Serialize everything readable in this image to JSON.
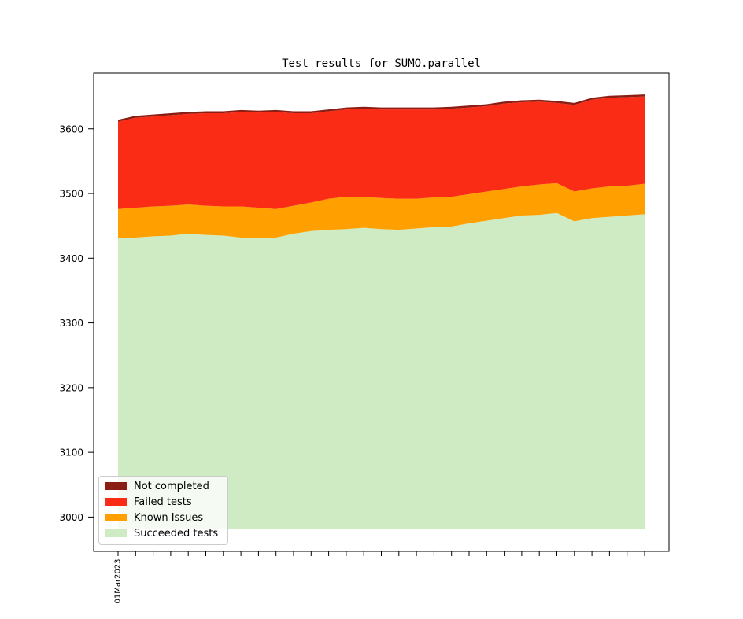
{
  "chart_data": {
    "type": "area",
    "stacked": true,
    "title": "Test results for SUMO.parallel",
    "x_first_tick_label": "01Mar2023",
    "x_points": 31,
    "yticks": [
      3000,
      3100,
      3200,
      3300,
      3400,
      3500,
      3600
    ],
    "ylim": [
      2947,
      3686
    ],
    "area_baseline": 2981,
    "grid": false,
    "legend_position": "lower left",
    "series": [
      {
        "name": "Not completed",
        "color": "#8B1E14",
        "values": [
          3,
          3,
          3,
          3,
          3,
          3,
          3,
          3,
          3,
          3,
          3,
          3,
          3,
          3,
          3,
          3,
          3,
          3,
          3,
          3,
          3,
          3,
          3,
          3,
          3,
          3,
          3,
          3,
          3,
          3,
          3
        ]
      },
      {
        "name": "Failed tests",
        "color": "#FB2C16",
        "values": [
          135,
          139,
          139,
          140,
          140,
          143,
          144,
          146,
          147,
          150,
          143,
          138,
          135,
          135,
          136,
          137,
          138,
          138,
          136,
          136,
          134,
          132,
          132,
          130,
          128,
          124,
          134,
          137,
          137,
          137,
          135
        ]
      },
      {
        "name": "Known Issues",
        "color": "#FFA000",
        "values": [
          45,
          46,
          46,
          46,
          45,
          45,
          45,
          48,
          47,
          44,
          43,
          44,
          48,
          50,
          48,
          48,
          48,
          46,
          46,
          46,
          45,
          45,
          45,
          45,
          47,
          46,
          46,
          46,
          47,
          46,
          47
        ]
      },
      {
        "name": "Succeeded tests",
        "color": "#CEEBC4",
        "values": [
          3431,
          3432,
          3434,
          3435,
          3438,
          3436,
          3435,
          3432,
          3431,
          3432,
          3438,
          3442,
          3444,
          3445,
          3447,
          3445,
          3444,
          3446,
          3448,
          3449,
          3454,
          3458,
          3462,
          3466,
          3467,
          3470,
          3457,
          3462,
          3464,
          3466,
          3468
        ]
      }
    ]
  }
}
